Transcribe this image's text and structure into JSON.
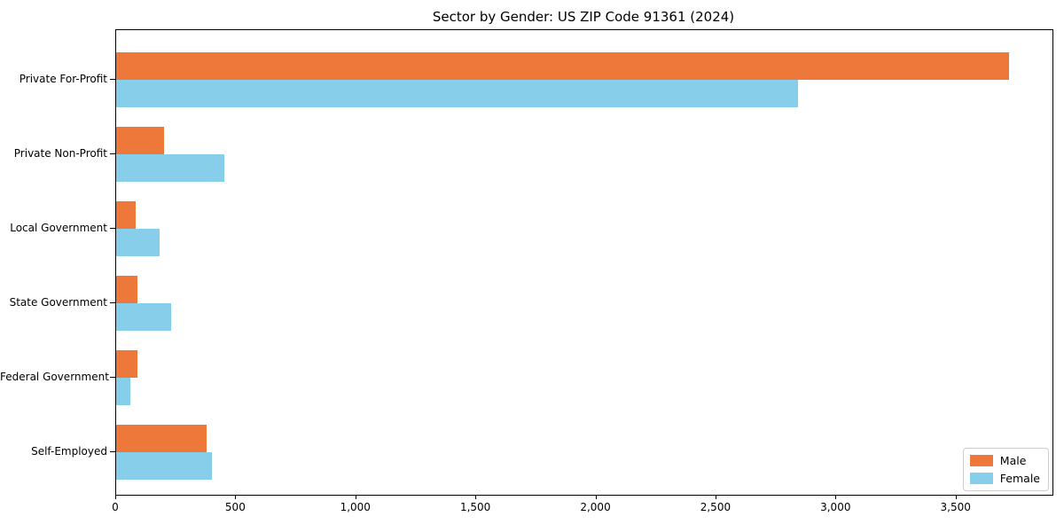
{
  "chart_data": {
    "type": "bar",
    "orientation": "horizontal",
    "title": "Sector by Gender: US ZIP Code 91361 (2024)",
    "categories": [
      "Private For-Profit",
      "Private Non-Profit",
      "Local Government",
      "State Government",
      "Federal Government",
      "Self-Employed"
    ],
    "series": [
      {
        "name": "Male",
        "color": "#ed7839",
        "values": [
          3720,
          200,
          80,
          90,
          88,
          375
        ]
      },
      {
        "name": "Female",
        "color": "#87ceeb",
        "values": [
          2840,
          450,
          180,
          230,
          60,
          400
        ]
      }
    ],
    "xlabel": "",
    "ylabel": "",
    "xlim": [
      0,
      3900
    ],
    "xticks": [
      0,
      500,
      1000,
      1500,
      2000,
      2500,
      3000,
      3500
    ],
    "xtick_labels": [
      "0",
      "500",
      "1,000",
      "1,500",
      "2,000",
      "2,500",
      "3,000",
      "3,500"
    ],
    "grid": false,
    "legend_position": "lower right",
    "legend_border_color": "#cccccc",
    "axis_color": "#000000",
    "background_color": "#ffffff"
  }
}
